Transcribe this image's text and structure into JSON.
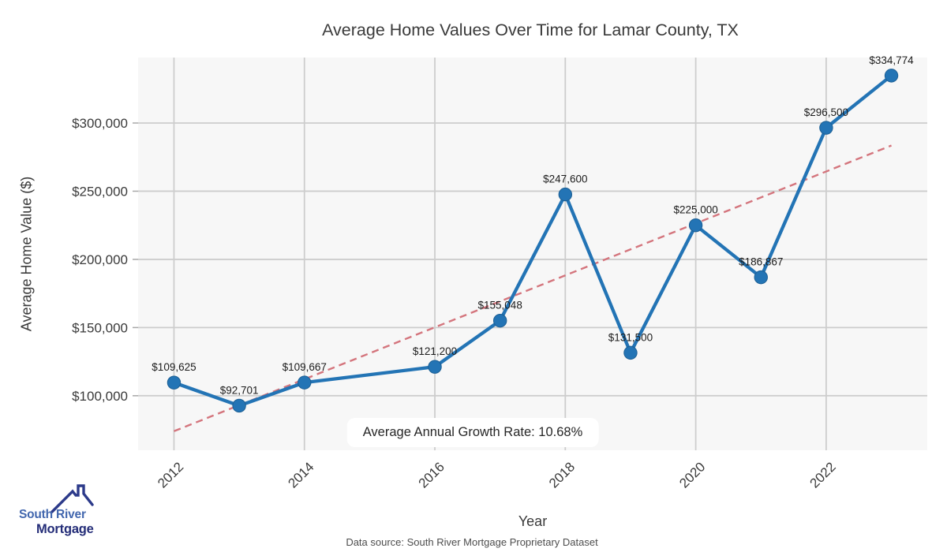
{
  "title": "Average Home Values Over Time for Lamar County, TX",
  "chart_data": {
    "type": "line",
    "title": "Average Home Values Over Time for Lamar County, TX",
    "xlabel": "Year",
    "ylabel": "Average Home Value ($)",
    "x": [
      2012,
      2013,
      2014,
      2016,
      2017,
      2018,
      2019,
      2020,
      2021,
      2022,
      2023
    ],
    "values": [
      109625,
      92701,
      109667,
      121200,
      155048,
      247600,
      131500,
      225000,
      186867,
      296500,
      334774
    ],
    "point_labels": [
      "$109,625",
      "$92,701",
      "$109,667",
      "$121,200",
      "$155,048",
      "$247,600",
      "$131,500",
      "$225,000",
      "$186,867",
      "$296,500",
      "$334,774"
    ],
    "xticks": [
      2012,
      2014,
      2016,
      2018,
      2020,
      2022
    ],
    "yticks": [
      100000,
      150000,
      200000,
      250000,
      300000
    ],
    "ytick_labels": [
      "$100,000",
      "$150,000",
      "$200,000",
      "$250,000",
      "$300,000"
    ],
    "xlim": [
      2011.45,
      2023.55
    ],
    "ylim": [
      60000,
      348000
    ],
    "grid": true,
    "legend": "none",
    "trendline": {
      "style": "dashed",
      "x": [
        2012,
        2023
      ],
      "values": [
        74000,
        283500
      ]
    },
    "annotation": "Average Annual Growth Rate: 10.68%",
    "colors": {
      "line": "#2374b5",
      "marker": "#2374b5",
      "marker_edge": "#1c5f94",
      "trend": "#d4757d",
      "plot_bg": "#f7f7f7",
      "grid": "#cdcdcd",
      "tick": "#a8a8a8"
    }
  },
  "footer": {
    "source": "Data source: South River Mortgage Proprietary Dataset"
  },
  "logo": {
    "line1": "South River",
    "line2": "Mortgage",
    "roof_color": "#2c3a8a"
  }
}
